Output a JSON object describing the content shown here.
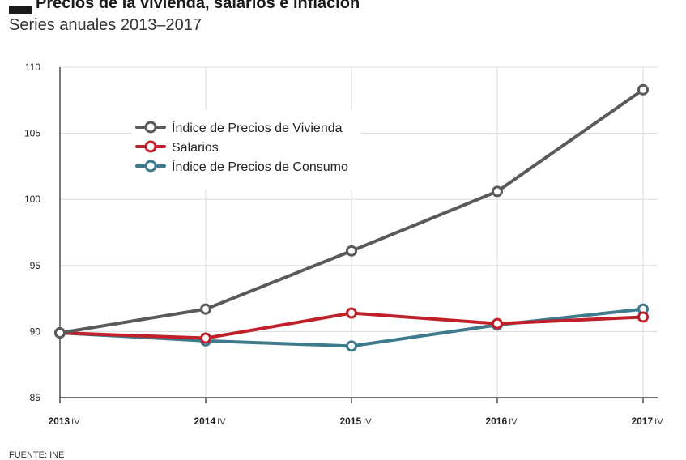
{
  "title": "Precios de la vivienda, salarios e inflación",
  "subtitle": "Series anuales 2013–2017",
  "source": "FUENTE: INE",
  "chart_data": {
    "type": "line",
    "categories": [
      {
        "year": "2013",
        "quarter": "IV"
      },
      {
        "year": "2014",
        "quarter": "IV"
      },
      {
        "year": "2015",
        "quarter": "IV"
      },
      {
        "year": "2016",
        "quarter": "IV"
      },
      {
        "year": "2017",
        "quarter": "IV"
      }
    ],
    "ylim": [
      85,
      110
    ],
    "yticks": [
      "85",
      "90",
      "95",
      "100",
      "105",
      "110"
    ],
    "grid": true,
    "legend_position": "top-left",
    "series": [
      {
        "name": "Índice de Precios de Vivienda",
        "color": "#5a5a5a",
        "values": [
          89.9,
          91.7,
          96.1,
          100.6,
          108.3
        ]
      },
      {
        "name": "Salarios",
        "color": "#c0202a",
        "values": [
          89.9,
          89.5,
          91.4,
          90.6,
          91.1
        ]
      },
      {
        "name": "Índice de Precios de Consumo",
        "color": "#3d7a8c",
        "values": [
          89.9,
          89.3,
          88.9,
          90.5,
          91.7
        ]
      }
    ]
  }
}
